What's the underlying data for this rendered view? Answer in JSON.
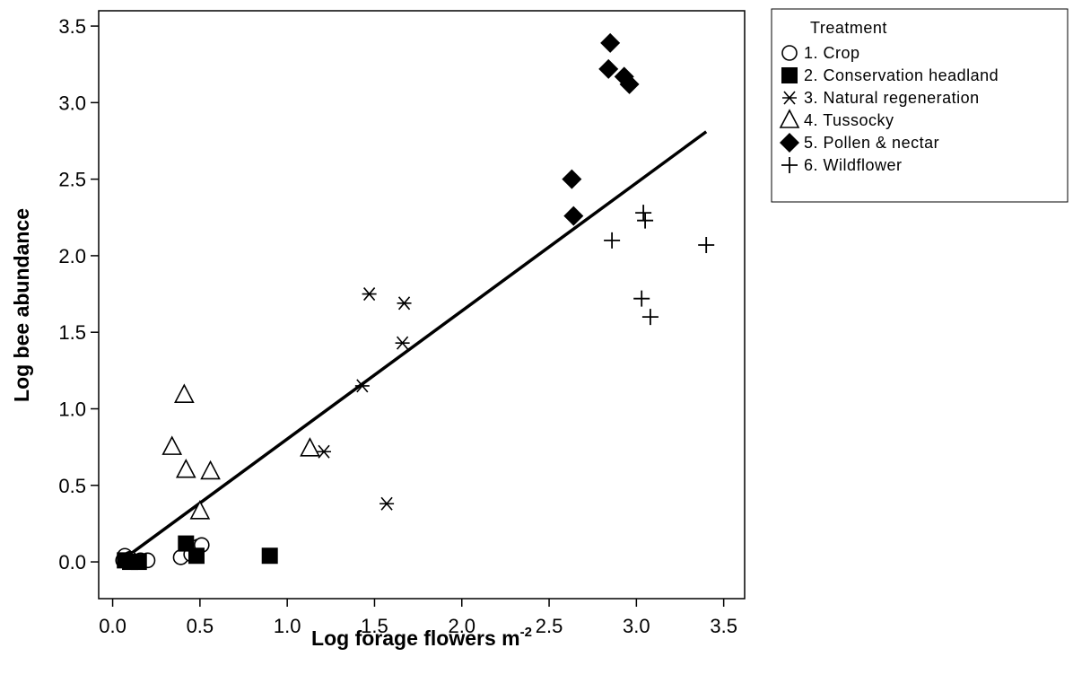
{
  "chart_data": {
    "type": "scatter",
    "title": "",
    "xlabel": "Log forage flowers m",
    "xlabel_superscript": "-2",
    "ylabel": "Log bee abundance",
    "xlim": [
      -0.08,
      3.62
    ],
    "ylim": [
      -0.24,
      3.6
    ],
    "xticks": [
      "0.0",
      "0.5",
      "1.0",
      "1.5",
      "2.0",
      "2.5",
      "3.0",
      "3.5"
    ],
    "yticks": [
      "0.0",
      "0.5",
      "1.0",
      "1.5",
      "2.0",
      "2.5",
      "3.0",
      "3.5"
    ],
    "grid": false,
    "legend": {
      "title": "Treatment",
      "placement": "outside-top-right"
    },
    "series": [
      {
        "name": "1. Crop",
        "marker": "open-circle",
        "points": [
          [
            0.06,
            0.01
          ],
          [
            0.07,
            0.04
          ],
          [
            0.1,
            0.02
          ],
          [
            0.13,
            0.0
          ],
          [
            0.16,
            0.01
          ],
          [
            0.2,
            0.01
          ],
          [
            0.39,
            0.03
          ],
          [
            0.45,
            0.05
          ],
          [
            0.49,
            0.1
          ],
          [
            0.51,
            0.11
          ]
        ]
      },
      {
        "name": "2. Conservation headland",
        "marker": "filled-square",
        "points": [
          [
            0.07,
            0.01
          ],
          [
            0.1,
            0.0
          ],
          [
            0.15,
            0.0
          ],
          [
            0.42,
            0.12
          ],
          [
            0.48,
            0.04
          ],
          [
            0.9,
            0.04
          ]
        ]
      },
      {
        "name": "3. Natural regeneration",
        "marker": "asterisk",
        "points": [
          [
            1.21,
            0.72
          ],
          [
            1.43,
            1.15
          ],
          [
            1.47,
            1.75
          ],
          [
            1.57,
            0.38
          ],
          [
            1.66,
            1.43
          ],
          [
            1.67,
            1.69
          ]
        ]
      },
      {
        "name": "4. Tussocky",
        "marker": "open-triangle",
        "points": [
          [
            0.34,
            0.75
          ],
          [
            0.41,
            1.09
          ],
          [
            0.42,
            0.6
          ],
          [
            0.5,
            0.33
          ],
          [
            0.56,
            0.59
          ],
          [
            1.13,
            0.74
          ]
        ]
      },
      {
        "name": "5. Pollen & nectar",
        "marker": "filled-diamond",
        "points": [
          [
            2.63,
            2.5
          ],
          [
            2.64,
            2.26
          ],
          [
            2.84,
            3.22
          ],
          [
            2.85,
            3.39
          ],
          [
            2.93,
            3.17
          ],
          [
            2.96,
            3.12
          ]
        ]
      },
      {
        "name": "6. Wildflower",
        "marker": "plus",
        "points": [
          [
            2.86,
            2.1
          ],
          [
            3.03,
            1.72
          ],
          [
            3.04,
            2.28
          ],
          [
            3.05,
            2.23
          ],
          [
            3.08,
            1.6
          ],
          [
            3.4,
            2.07
          ]
        ]
      }
    ],
    "trendline": {
      "x": [
        0.1,
        3.4
      ],
      "y": [
        0.05,
        2.81
      ]
    }
  }
}
